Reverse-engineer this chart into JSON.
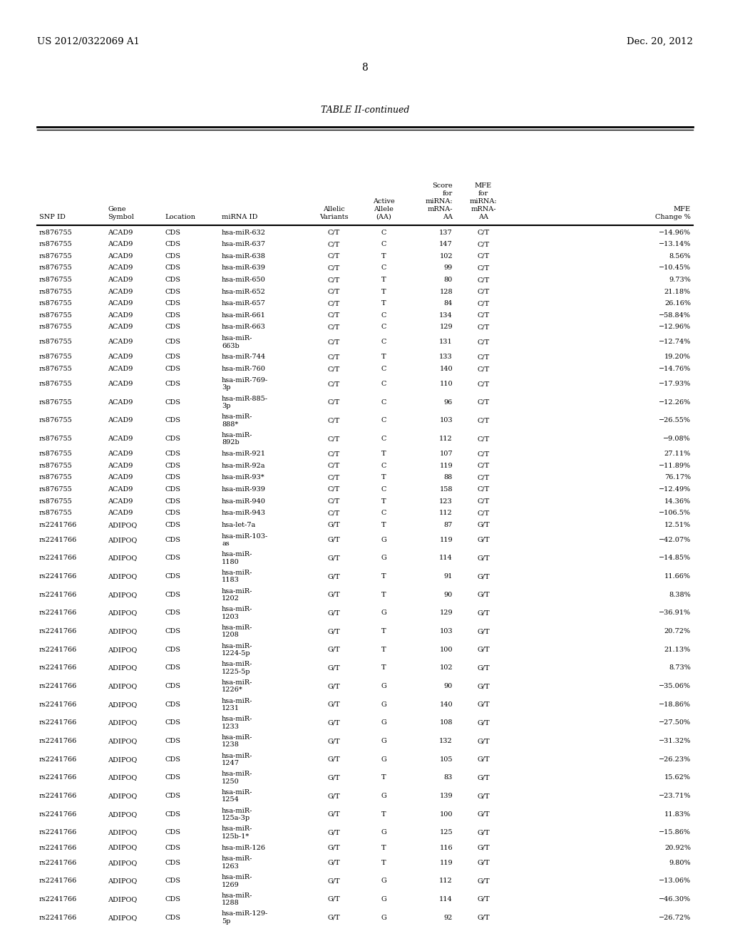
{
  "patent_left": "US 2012/0322069 A1",
  "patent_right": "Dec. 20, 2012",
  "page_number": "8",
  "table_title": "TABLE II-continued",
  "col_headers_line1": [
    "",
    "",
    "",
    "",
    "",
    "Active",
    "Score",
    "MFE",
    ""
  ],
  "col_headers_line2": [
    "",
    "",
    "",
    "",
    "Allelic",
    "Allele",
    "for",
    "for",
    ""
  ],
  "col_headers_line3": [
    "",
    "Gene",
    "",
    "",
    "Variants",
    "(AA)",
    "miRNA:",
    "miRNA:",
    "MFE"
  ],
  "col_headers_line4": [
    "SNP ID",
    "Symbol",
    "Location",
    "miRNA ID",
    "",
    "",
    "mRNA-",
    "mRNA-",
    "Change %"
  ],
  "col_headers_line5": [
    "",
    "",
    "",
    "",
    "",
    "",
    "AA",
    "AA",
    ""
  ],
  "rows": [
    [
      "rs876755",
      "ACAD9",
      "CDS",
      "hsa-miR-632",
      "C/T",
      "C",
      "137",
      "C/T",
      "−14.96%"
    ],
    [
      "rs876755",
      "ACAD9",
      "CDS",
      "hsa-miR-637",
      "C/T",
      "C",
      "147",
      "C/T",
      "−13.14%"
    ],
    [
      "rs876755",
      "ACAD9",
      "CDS",
      "hsa-miR-638",
      "C/T",
      "T",
      "102",
      "C/T",
      "8.56%"
    ],
    [
      "rs876755",
      "ACAD9",
      "CDS",
      "hsa-miR-639",
      "C/T",
      "C",
      "99",
      "C/T",
      "−10.45%"
    ],
    [
      "rs876755",
      "ACAD9",
      "CDS",
      "hsa-miR-650",
      "C/T",
      "T",
      "80",
      "C/T",
      "9.73%"
    ],
    [
      "rs876755",
      "ACAD9",
      "CDS",
      "hsa-miR-652",
      "C/T",
      "T",
      "128",
      "C/T",
      "21.18%"
    ],
    [
      "rs876755",
      "ACAD9",
      "CDS",
      "hsa-miR-657",
      "C/T",
      "T",
      "84",
      "C/T",
      "26.16%"
    ],
    [
      "rs876755",
      "ACAD9",
      "CDS",
      "hsa-miR-661",
      "C/T",
      "C",
      "134",
      "C/T",
      "−58.84%"
    ],
    [
      "rs876755",
      "ACAD9",
      "CDS",
      "hsa-miR-663",
      "C/T",
      "C",
      "129",
      "C/T",
      "−12.96%"
    ],
    [
      "rs876755",
      "ACAD9",
      "CDS",
      "hsa-miR-\n663b",
      "C/T",
      "C",
      "131",
      "C/T",
      "−12.74%"
    ],
    [
      "rs876755",
      "ACAD9",
      "CDS",
      "hsa-miR-744",
      "C/T",
      "T",
      "133",
      "C/T",
      "19.20%"
    ],
    [
      "rs876755",
      "ACAD9",
      "CDS",
      "hsa-miR-760",
      "C/T",
      "C",
      "140",
      "C/T",
      "−14.76%"
    ],
    [
      "rs876755",
      "ACAD9",
      "CDS",
      "hsa-miR-769-\n3p",
      "C/T",
      "C",
      "110",
      "C/T",
      "−17.93%"
    ],
    [
      "rs876755",
      "ACAD9",
      "CDS",
      "hsa-miR-885-\n3p",
      "C/T",
      "C",
      "96",
      "C/T",
      "−12.26%"
    ],
    [
      "rs876755",
      "ACAD9",
      "CDS",
      "hsa-miR-\n888*",
      "C/T",
      "C",
      "103",
      "C/T",
      "−26.55%"
    ],
    [
      "rs876755",
      "ACAD9",
      "CDS",
      "hsa-miR-\n892b",
      "C/T",
      "C",
      "112",
      "C/T",
      "−9.08%"
    ],
    [
      "rs876755",
      "ACAD9",
      "CDS",
      "hsa-miR-921",
      "C/T",
      "T",
      "107",
      "C/T",
      "27.11%"
    ],
    [
      "rs876755",
      "ACAD9",
      "CDS",
      "hsa-miR-92a",
      "C/T",
      "C",
      "119",
      "C/T",
      "−11.89%"
    ],
    [
      "rs876755",
      "ACAD9",
      "CDS",
      "hsa-miR-93*",
      "C/T",
      "T",
      "88",
      "C/T",
      "76.17%"
    ],
    [
      "rs876755",
      "ACAD9",
      "CDS",
      "hsa-miR-939",
      "C/T",
      "C",
      "158",
      "C/T",
      "−12.49%"
    ],
    [
      "rs876755",
      "ACAD9",
      "CDS",
      "hsa-miR-940",
      "C/T",
      "T",
      "123",
      "C/T",
      "14.36%"
    ],
    [
      "rs876755",
      "ACAD9",
      "CDS",
      "hsa-miR-943",
      "C/T",
      "C",
      "112",
      "C/T",
      "−106.5%"
    ],
    [
      "rs2241766",
      "ADIPOQ",
      "CDS",
      "hsa-let-7a",
      "G/T",
      "T",
      "87",
      "G/T",
      "12.51%"
    ],
    [
      "rs2241766",
      "ADIPOQ",
      "CDS",
      "hsa-miR-103-\nas",
      "G/T",
      "G",
      "119",
      "G/T",
      "−42.07%"
    ],
    [
      "rs2241766",
      "ADIPOQ",
      "CDS",
      "hsa-miR-\n1180",
      "G/T",
      "G",
      "114",
      "G/T",
      "−14.85%"
    ],
    [
      "rs2241766",
      "ADIPOQ",
      "CDS",
      "hsa-miR-\n1183",
      "G/T",
      "T",
      "91",
      "G/T",
      "11.66%"
    ],
    [
      "rs2241766",
      "ADIPOQ",
      "CDS",
      "hsa-miR-\n1202",
      "G/T",
      "T",
      "90",
      "G/T",
      "8.38%"
    ],
    [
      "rs2241766",
      "ADIPOQ",
      "CDS",
      "hsa-miR-\n1203",
      "G/T",
      "G",
      "129",
      "G/T",
      "−36.91%"
    ],
    [
      "rs2241766",
      "ADIPOQ",
      "CDS",
      "hsa-miR-\n1208",
      "G/T",
      "T",
      "103",
      "G/T",
      "20.72%"
    ],
    [
      "rs2241766",
      "ADIPOQ",
      "CDS",
      "hsa-miR-\n1224-5p",
      "G/T",
      "T",
      "100",
      "G/T",
      "21.13%"
    ],
    [
      "rs2241766",
      "ADIPOQ",
      "CDS",
      "hsa-miR-\n1225-5p",
      "G/T",
      "T",
      "102",
      "G/T",
      "8.73%"
    ],
    [
      "rs2241766",
      "ADIPOQ",
      "CDS",
      "hsa-miR-\n1226*",
      "G/T",
      "G",
      "90",
      "G/T",
      "−35.06%"
    ],
    [
      "rs2241766",
      "ADIPOQ",
      "CDS",
      "hsa-miR-\n1231",
      "G/T",
      "G",
      "140",
      "G/T",
      "−18.86%"
    ],
    [
      "rs2241766",
      "ADIPOQ",
      "CDS",
      "hsa-miR-\n1233",
      "G/T",
      "G",
      "108",
      "G/T",
      "−27.50%"
    ],
    [
      "rs2241766",
      "ADIPOQ",
      "CDS",
      "hsa-miR-\n1238",
      "G/T",
      "G",
      "132",
      "G/T",
      "−31.32%"
    ],
    [
      "rs2241766",
      "ADIPOQ",
      "CDS",
      "hsa-miR-\n1247",
      "G/T",
      "G",
      "105",
      "G/T",
      "−26.23%"
    ],
    [
      "rs2241766",
      "ADIPOQ",
      "CDS",
      "hsa-miR-\n1250",
      "G/T",
      "T",
      "83",
      "G/T",
      "15.62%"
    ],
    [
      "rs2241766",
      "ADIPOQ",
      "CDS",
      "hsa-miR-\n1254",
      "G/T",
      "G",
      "139",
      "G/T",
      "−23.71%"
    ],
    [
      "rs2241766",
      "ADIPOQ",
      "CDS",
      "hsa-miR-\n125a-3p",
      "G/T",
      "T",
      "100",
      "G/T",
      "11.83%"
    ],
    [
      "rs2241766",
      "ADIPOQ",
      "CDS",
      "hsa-miR-\n125b-1*",
      "G/T",
      "G",
      "125",
      "G/T",
      "−15.86%"
    ],
    [
      "rs2241766",
      "ADIPOQ",
      "CDS",
      "hsa-miR-126",
      "G/T",
      "T",
      "116",
      "G/T",
      "20.92%"
    ],
    [
      "rs2241766",
      "ADIPOQ",
      "CDS",
      "hsa-miR-\n1263",
      "G/T",
      "T",
      "119",
      "G/T",
      "9.80%"
    ],
    [
      "rs2241766",
      "ADIPOQ",
      "CDS",
      "hsa-miR-\n1269",
      "G/T",
      "G",
      "112",
      "G/T",
      "−13.06%"
    ],
    [
      "rs2241766",
      "ADIPOQ",
      "CDS",
      "hsa-miR-\n1288",
      "G/T",
      "G",
      "114",
      "G/T",
      "−46.30%"
    ],
    [
      "rs2241766",
      "ADIPOQ",
      "CDS",
      "hsa-miR-129-\n5p",
      "G/T",
      "G",
      "92",
      "G/T",
      "−26.72%"
    ]
  ],
  "bg_color": "#ffffff",
  "text_color": "#000000",
  "font_size": 7.0,
  "header_font_size": 7.0
}
